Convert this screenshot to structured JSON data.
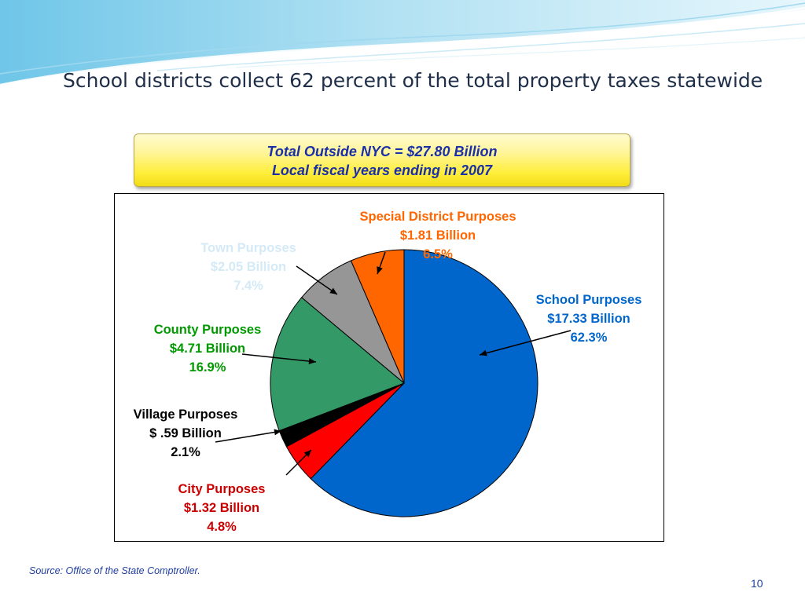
{
  "slide": {
    "title": "School districts collect 62 percent of the total property taxes statewide",
    "callout_line1": "Total Outside NYC = $27.80 Billion",
    "callout_line2": "Local fiscal years ending in 2007",
    "source": "Source:  Office of the State Comptroller.",
    "page_number": "10"
  },
  "colors": {
    "title_text": "#1f2f49",
    "callout_text": "#1b2fa8",
    "accent_blue": "#1f3fa0"
  },
  "chart_data": {
    "type": "pie",
    "title": "",
    "start_angle_deg": 0,
    "direction": "clockwise",
    "slices": [
      {
        "name": "School Purposes",
        "amount": "$17.33 Billion",
        "percent_label": "62.3%",
        "value": 62.3,
        "color": "#0066cc",
        "label_color": "#0066cc"
      },
      {
        "name": "City Purposes",
        "amount": "$1.32 Billion",
        "percent_label": "4.8%",
        "value": 4.8,
        "color": "#ff0000",
        "label_color": "#cc0000"
      },
      {
        "name": "Village Purposes",
        "amount": "$ .59 Billion",
        "percent_label": "2.1%",
        "value": 2.1,
        "color": "#000000",
        "label_color": "#000000"
      },
      {
        "name": "County Purposes",
        "amount": "$4.71 Billion",
        "percent_label": "16.9%",
        "value": 16.9,
        "color": "#339966",
        "label_color": "#009900"
      },
      {
        "name": "Town Purposes",
        "amount": "$2.05 Billion",
        "percent_label": "7.4%",
        "value": 7.4,
        "color": "#969696",
        "label_color": "#d4eaf6"
      },
      {
        "name": "Special District Purposes",
        "amount": "$1.81 Billion",
        "percent_label": "6.5%",
        "value": 6.5,
        "color": "#ff6600",
        "label_color": "#ff6600"
      }
    ]
  }
}
